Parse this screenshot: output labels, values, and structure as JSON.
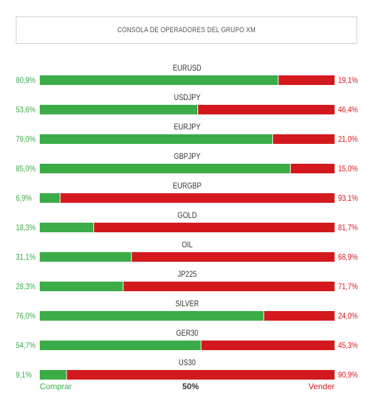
{
  "header": {
    "title": "CONSOLA DE OPERADORES DEL GRUPO XM"
  },
  "colors": {
    "buy": "#3cac48",
    "sell": "#d3191e",
    "text": "#333333"
  },
  "chart_data": {
    "type": "bar",
    "stacked": true,
    "orientation": "horizontal",
    "categories": [
      "EURUSD",
      "USDJPY",
      "EURJPY",
      "GBPJPY",
      "EURGBP",
      "GOLD",
      "OIL",
      "JP225",
      "SILVER",
      "GER30",
      "US30"
    ],
    "series": [
      {
        "name": "Comprar",
        "values": [
          80.9,
          53.6,
          79.0,
          85.0,
          6.9,
          18.3,
          31.1,
          28.3,
          76.0,
          54.7,
          9.1
        ],
        "labels": [
          "80,9%",
          "53,6%",
          "79,0%",
          "85,0%",
          "6,9%",
          "18,3%",
          "31,1%",
          "28,3%",
          "76,0%",
          "54,7%",
          "9,1%"
        ]
      },
      {
        "name": "Vender",
        "values": [
          19.1,
          46.4,
          21.0,
          15.0,
          93.1,
          81.7,
          68.9,
          71.7,
          24.0,
          45.3,
          90.9
        ],
        "labels": [
          "19,1%",
          "46,4%",
          "21,0%",
          "15,0%",
          "93,1%",
          "81,7%",
          "68,9%",
          "71,7%",
          "24,0%",
          "45,3%",
          "90,9%"
        ]
      }
    ],
    "xlim": [
      0,
      100
    ]
  },
  "footer": {
    "buy_label": "Comprar",
    "mid_label": "50%",
    "sell_label": "Vender"
  }
}
